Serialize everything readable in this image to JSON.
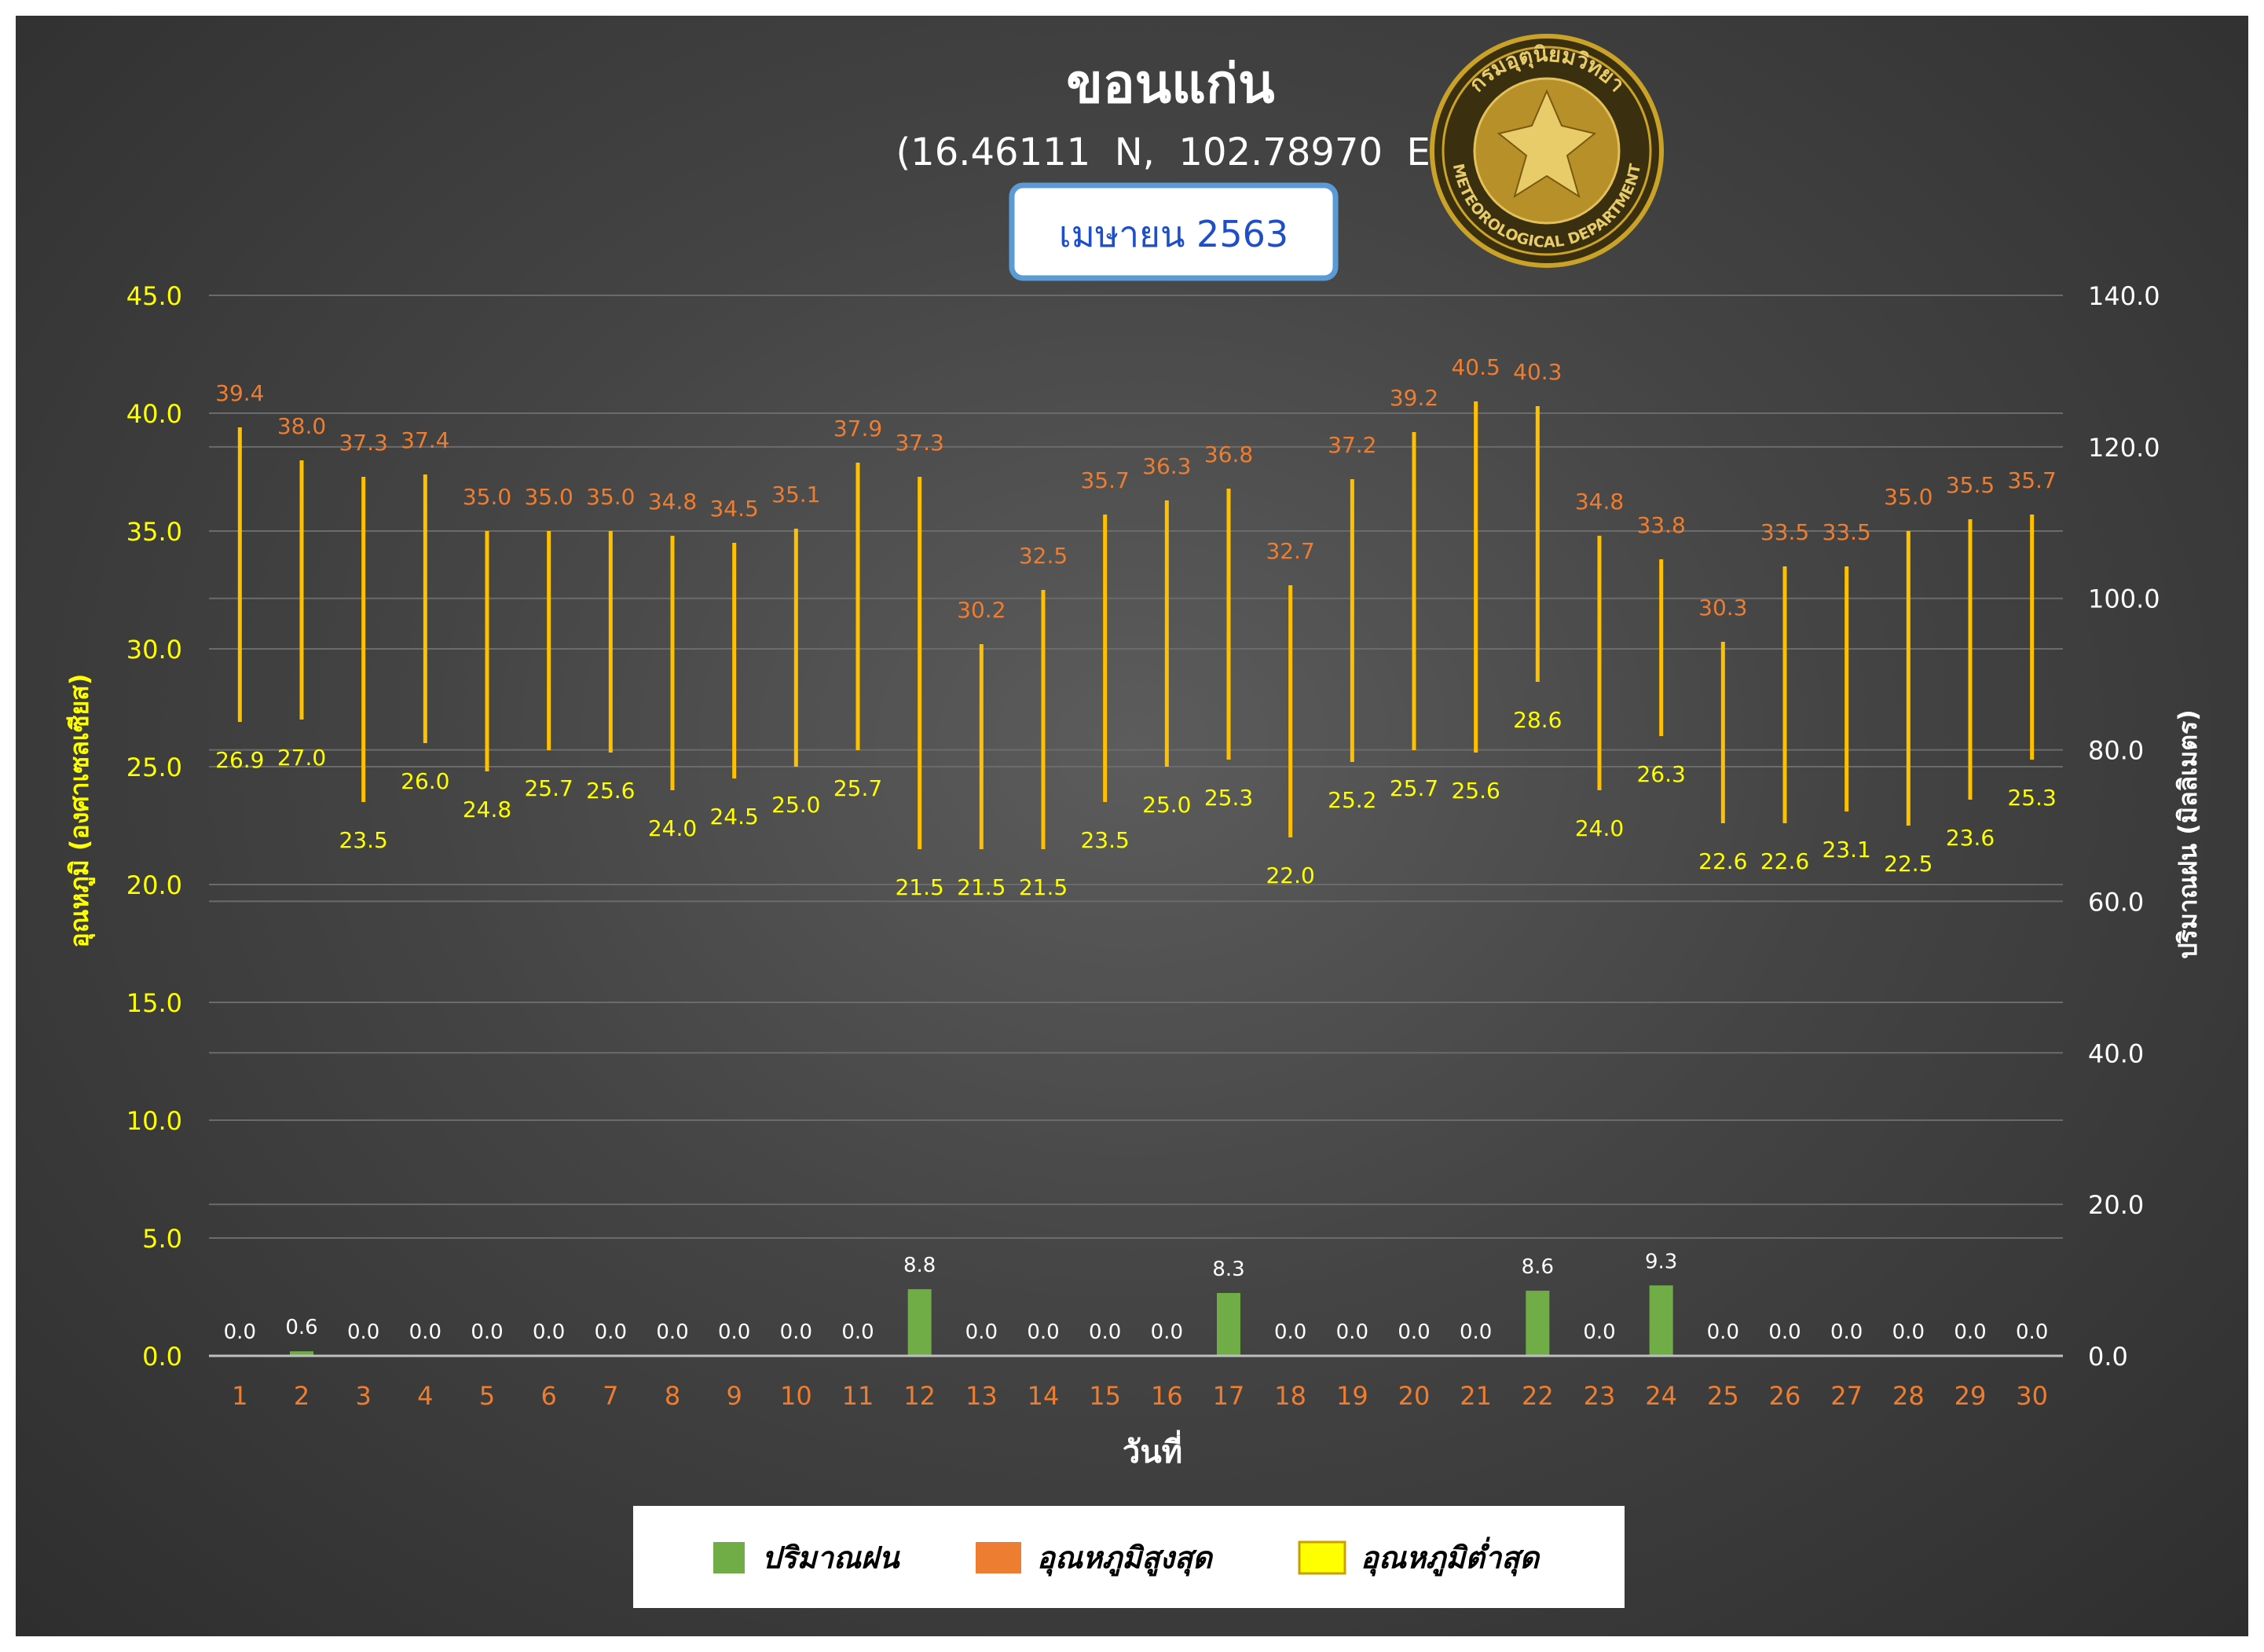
{
  "title": "ขอนแก่น",
  "subtitle": "(16.46111  N,  102.78970  E)",
  "period": "เมษายน 2563",
  "logo": {
    "text_top": "กรมอุตุนิยมวิทยา",
    "text_bottom": "METEOROLOGICAL DEPARTMENT"
  },
  "colors": {
    "rain": "#70AD47",
    "tmax": "#ED7D31",
    "tmin": "#FFFF00",
    "range_line": "#FFC000",
    "left_axis": "#FFFF00",
    "right_axis": "#FFFFFF",
    "x_ticks": "#ED7D31",
    "grid": "#6b6b6b",
    "period_border": "#5B9BD5",
    "period_text": "#1F4FC8"
  },
  "chart_data": {
    "type": "bar",
    "title": "ขอนแก่น",
    "subtitle": "(16.46111  N,  102.78970  E)",
    "xlabel": "วันที่",
    "ylabel": "อุณหภูมิ (องศาเซลเซียส)",
    "y2label": "ปริมาณฝน (มิลลิเมตร)",
    "ylim": [
      0,
      45
    ],
    "y2lim": [
      0,
      140
    ],
    "yticks": [
      "0.0",
      "5.0",
      "10.0",
      "15.0",
      "20.0",
      "25.0",
      "30.0",
      "35.0",
      "40.0",
      "45.0"
    ],
    "y2ticks": [
      "0.0",
      "20.0",
      "40.0",
      "60.0",
      "80.0",
      "100.0",
      "120.0",
      "140.0"
    ],
    "grid": true,
    "legend_position": "bottom",
    "categories": [
      "1",
      "2",
      "3",
      "4",
      "5",
      "6",
      "7",
      "8",
      "9",
      "10",
      "11",
      "12",
      "13",
      "14",
      "15",
      "16",
      "17",
      "18",
      "19",
      "20",
      "21",
      "22",
      "23",
      "24",
      "25",
      "26",
      "27",
      "28",
      "29",
      "30"
    ],
    "series": [
      {
        "name": "ปริมาณฝน",
        "type": "bar",
        "axis": "right",
        "values": [
          0.0,
          0.6,
          0.0,
          0.0,
          0.0,
          0.0,
          0.0,
          0.0,
          0.0,
          0.0,
          0.0,
          8.8,
          0.0,
          0.0,
          0.0,
          0.0,
          8.3,
          0.0,
          0.0,
          0.0,
          0.0,
          8.6,
          0.0,
          9.3,
          0.0,
          0.0,
          0.0,
          0.0,
          0.0,
          0.0
        ],
        "labels": [
          "0.0",
          "0.6",
          "0.0",
          "0.0",
          "0.0",
          "0.0",
          "0.0",
          "0.0",
          "0.0",
          "0.0",
          "0.0",
          "8.8",
          "0.0",
          "0.0",
          "0.0",
          "0.0",
          "8.3",
          "0.0",
          "0.0",
          "0.0",
          "0.0",
          "8.6",
          "0.0",
          "9.3",
          "0.0",
          "0.0",
          "0.0",
          "0.0",
          "0.0",
          "0.0"
        ]
      },
      {
        "name": "อุณหภูมิสูงสุด",
        "type": "line",
        "axis": "left",
        "values": [
          39.4,
          38.0,
          37.3,
          37.4,
          35.0,
          35.0,
          35.0,
          34.8,
          34.5,
          35.1,
          37.9,
          37.3,
          30.2,
          32.5,
          35.7,
          36.3,
          36.8,
          32.7,
          37.2,
          39.2,
          40.5,
          40.3,
          34.8,
          33.8,
          30.3,
          33.5,
          33.5,
          35.0,
          35.5,
          35.7
        ],
        "labels": [
          "39.4",
          "38.0",
          "37.3",
          "37.4",
          "35.0",
          "35.0",
          "35.0",
          "34.8",
          "34.5",
          "35.1",
          "37.9",
          "37.3",
          "30.2",
          "32.5",
          "35.7",
          "36.3",
          "36.8",
          "32.7",
          "37.2",
          "39.2",
          "40.5",
          "40.3",
          "34.8",
          "33.8",
          "30.3",
          "33.5",
          "33.5",
          "35.0",
          "35.5",
          "35.7"
        ]
      },
      {
        "name": "อุณหภูมิต่ำสุด",
        "type": "line",
        "axis": "left",
        "values": [
          26.9,
          27.0,
          23.5,
          26.0,
          24.8,
          25.7,
          25.6,
          24.0,
          24.5,
          25.0,
          25.7,
          21.5,
          21.5,
          21.5,
          23.5,
          25.0,
          25.3,
          22.0,
          25.2,
          25.7,
          25.6,
          28.6,
          24.0,
          26.3,
          22.6,
          22.6,
          23.1,
          22.5,
          23.6,
          25.3
        ],
        "labels": [
          "26.9",
          "27.0",
          "23.5",
          "26.0",
          "24.8",
          "25.7",
          "25.6",
          "24.0",
          "24.5",
          "25.0",
          "25.7",
          "21.5",
          "21.5",
          "21.5",
          "23.5",
          "25.0",
          "25.3",
          "22.0",
          "25.2",
          "25.7",
          "25.6",
          "28.6",
          "24.0",
          "26.3",
          "22.6",
          "22.6",
          "23.1",
          "22.5",
          "23.6",
          "25.3"
        ]
      }
    ]
  }
}
